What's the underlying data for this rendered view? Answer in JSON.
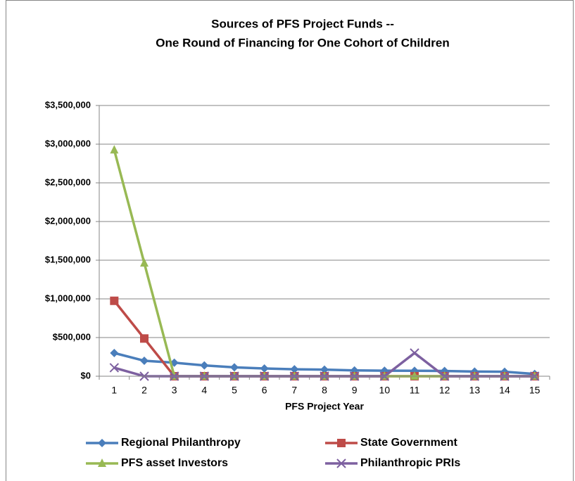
{
  "chart_data": {
    "type": "line",
    "title": [
      "Sources of PFS Project Funds --",
      "One Round of Financing for One Cohort of Children"
    ],
    "x_label": "PFS Project Year",
    "categories": [
      "1",
      "2",
      "3",
      "4",
      "5",
      "6",
      "7",
      "8",
      "9",
      "10",
      "11",
      "12",
      "13",
      "14",
      "15"
    ],
    "series": [
      {
        "name": "Regional Philanthropy",
        "color": "#4a7ebb",
        "marker": "diamond",
        "values": [
          300000,
          200000,
          175000,
          140000,
          115000,
          100000,
          90000,
          85000,
          75000,
          72000,
          70000,
          68000,
          60000,
          58000,
          30000
        ]
      },
      {
        "name": "State Government",
        "color": "#be4b48",
        "marker": "square",
        "values": [
          975000,
          487500,
          0,
          0,
          0,
          0,
          0,
          0,
          0,
          0,
          0,
          0,
          0,
          0,
          0
        ]
      },
      {
        "name": "PFS asset Investors",
        "color": "#98b954",
        "marker": "triangle",
        "values": [
          2925000,
          1462500,
          0,
          0,
          0,
          0,
          0,
          0,
          0,
          0,
          0,
          0,
          0,
          0,
          0
        ]
      },
      {
        "name": "Philanthropic PRIs",
        "color": "#7d60a0",
        "marker": "x",
        "values": [
          110000,
          0,
          0,
          0,
          0,
          0,
          0,
          0,
          0,
          0,
          300000,
          0,
          0,
          0,
          0
        ]
      }
    ],
    "ylim": [
      0,
      3500000
    ],
    "yticks": [
      {
        "value": 0,
        "label": "$0"
      },
      {
        "value": 500000,
        "label": "$500,000"
      },
      {
        "value": 1000000,
        "label": "$1,000,000"
      },
      {
        "value": 1500000,
        "label": "$1,500,000"
      },
      {
        "value": 2000000,
        "label": "$2,000,000"
      },
      {
        "value": 2500000,
        "label": "$2,500,000"
      },
      {
        "value": 3000000,
        "label": "$3,000,000"
      },
      {
        "value": 3500000,
        "label": "$3,500,000"
      }
    ],
    "grid": true,
    "legend": "bottom"
  }
}
